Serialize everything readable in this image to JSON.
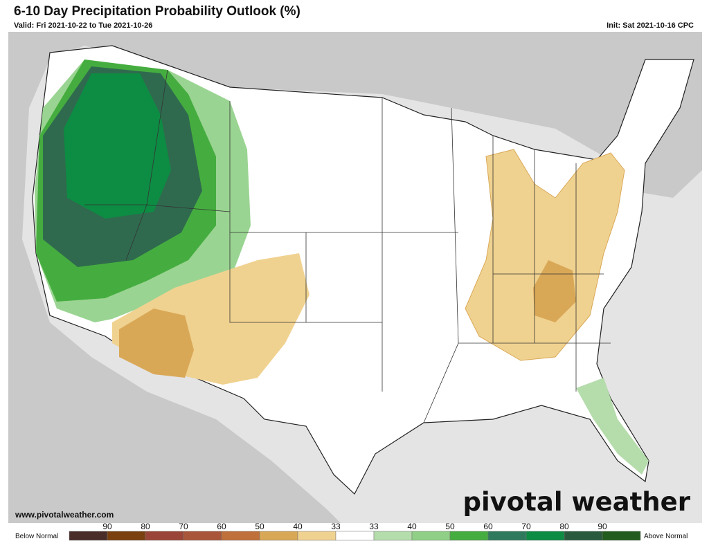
{
  "header": {
    "title": "6-10 Day Precipitation Probability Outlook (%)",
    "valid": "Valid: Fri 2021-10-22 to Tue 2021-10-26",
    "init": "Init: Sat 2021-10-16 CPC"
  },
  "footer": {
    "website": "www.pivotalweather.com",
    "brand": "pivotal weather"
  },
  "legend": {
    "below": "Below Normal",
    "above": "Above Normal",
    "labels": [
      "90",
      "80",
      "70",
      "60",
      "50",
      "40",
      "33",
      "33",
      "40",
      "50",
      "60",
      "70",
      "80",
      "90"
    ],
    "colors": [
      "#4a2c28",
      "#7a400f",
      "#9a4537",
      "#a9553a",
      "#c0703a",
      "#d9a857",
      "#f0d290",
      "#ffffff",
      "#b5dcab",
      "#8fcf86",
      "#45ad3f",
      "#2f7a5c",
      "#0d8c43",
      "#2a5a3e",
      "#225c1e"
    ]
  }
}
